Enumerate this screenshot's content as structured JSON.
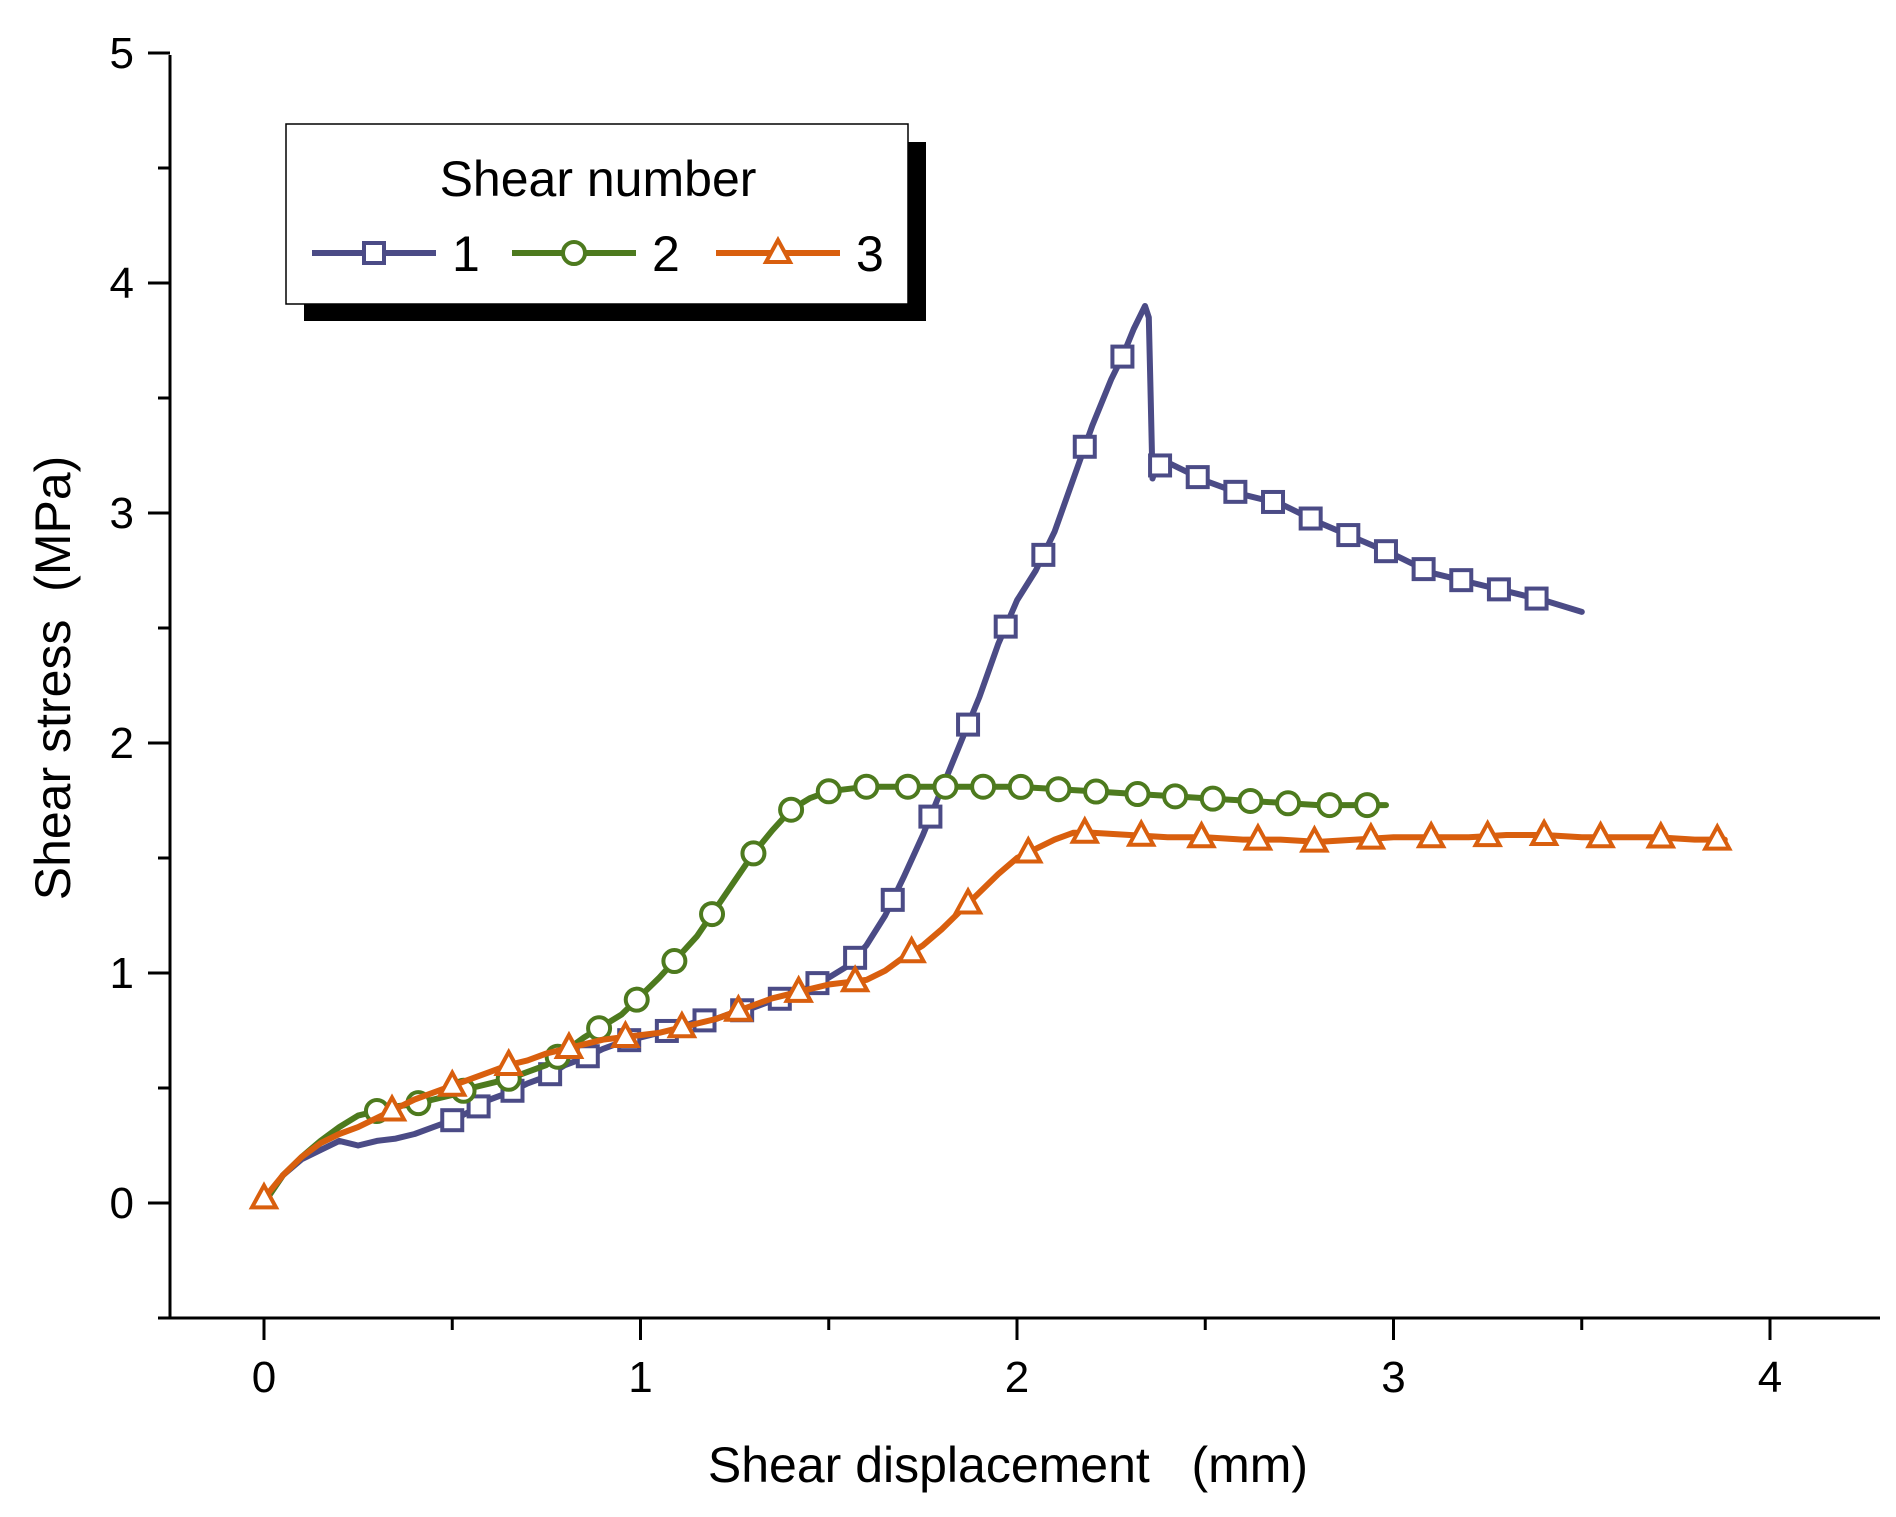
{
  "chart_data": {
    "type": "line",
    "title": "",
    "xlabel": "Shear displacement   (mm)",
    "ylabel": "Shear stress  (MPa)",
    "xlim": [
      -0.25,
      4.3
    ],
    "ylim": [
      -0.5,
      5
    ],
    "x_ticks": [
      0,
      1,
      2,
      3,
      4
    ],
    "x_tick_labels": [
      "0",
      "1",
      "2",
      "3",
      "4"
    ],
    "y_ticks": [
      0,
      1,
      2,
      3,
      4,
      5
    ],
    "y_tick_labels": [
      "0",
      "1",
      "2",
      "3",
      "4",
      "5"
    ],
    "grid": false,
    "legend": {
      "title": "Shear number",
      "position": "top-left"
    },
    "series": [
      {
        "name": "1",
        "color": "#4b4b86",
        "marker": "square",
        "points": [
          [
            0,
            0
          ],
          [
            0.05,
            0.12
          ],
          [
            0.1,
            0.19
          ],
          [
            0.15,
            0.23
          ],
          [
            0.2,
            0.27
          ],
          [
            0.25,
            0.25
          ],
          [
            0.3,
            0.27
          ],
          [
            0.35,
            0.28
          ],
          [
            0.4,
            0.3
          ],
          [
            0.45,
            0.33
          ],
          [
            0.5,
            0.36
          ],
          [
            0.55,
            0.4
          ],
          [
            0.6,
            0.45
          ],
          [
            0.65,
            0.48
          ],
          [
            0.7,
            0.52
          ],
          [
            0.75,
            0.55
          ],
          [
            0.8,
            0.6
          ],
          [
            0.85,
            0.63
          ],
          [
            0.9,
            0.67
          ],
          [
            0.95,
            0.7
          ],
          [
            1.0,
            0.72
          ],
          [
            1.05,
            0.74
          ],
          [
            1.1,
            0.76
          ],
          [
            1.15,
            0.79
          ],
          [
            1.2,
            0.8
          ],
          [
            1.25,
            0.83
          ],
          [
            1.3,
            0.85
          ],
          [
            1.35,
            0.88
          ],
          [
            1.4,
            0.9
          ],
          [
            1.45,
            0.94
          ],
          [
            1.5,
            0.98
          ],
          [
            1.55,
            1.03
          ],
          [
            1.6,
            1.12
          ],
          [
            1.65,
            1.25
          ],
          [
            1.7,
            1.42
          ],
          [
            1.75,
            1.6
          ],
          [
            1.8,
            1.8
          ],
          [
            1.85,
            2.0
          ],
          [
            1.9,
            2.2
          ],
          [
            1.95,
            2.43
          ],
          [
            2.0,
            2.62
          ],
          [
            2.05,
            2.75
          ],
          [
            2.1,
            2.92
          ],
          [
            2.15,
            3.15
          ],
          [
            2.2,
            3.38
          ],
          [
            2.25,
            3.58
          ],
          [
            2.28,
            3.68
          ],
          [
            2.31,
            3.8
          ],
          [
            2.34,
            3.9
          ],
          [
            2.35,
            3.85
          ],
          [
            2.355,
            3.5
          ],
          [
            2.36,
            3.15
          ],
          [
            2.37,
            3.2
          ],
          [
            2.4,
            3.22
          ],
          [
            2.5,
            3.14
          ],
          [
            2.6,
            3.08
          ],
          [
            2.7,
            3.04
          ],
          [
            2.8,
            2.96
          ],
          [
            2.9,
            2.89
          ],
          [
            3.0,
            2.82
          ],
          [
            3.1,
            2.74
          ],
          [
            3.2,
            2.7
          ],
          [
            3.3,
            2.66
          ],
          [
            3.4,
            2.62
          ],
          [
            3.5,
            2.57
          ]
        ],
        "markers_x": [
          0.5,
          0.57,
          0.66,
          0.76,
          0.86,
          0.97,
          1.07,
          1.17,
          1.27,
          1.37,
          1.47,
          1.57,
          1.67,
          1.77,
          1.87,
          1.97,
          2.07,
          2.18,
          2.28,
          2.38,
          2.48,
          2.58,
          2.68,
          2.78,
          2.88,
          2.98,
          3.08,
          3.18,
          3.28,
          3.38
        ]
      },
      {
        "name": "2",
        "color": "#4d7a1e",
        "marker": "circle",
        "points": [
          [
            0,
            0
          ],
          [
            0.05,
            0.12
          ],
          [
            0.1,
            0.2
          ],
          [
            0.15,
            0.27
          ],
          [
            0.2,
            0.33
          ],
          [
            0.25,
            0.38
          ],
          [
            0.3,
            0.4
          ],
          [
            0.35,
            0.42
          ],
          [
            0.4,
            0.43
          ],
          [
            0.45,
            0.45
          ],
          [
            0.5,
            0.47
          ],
          [
            0.55,
            0.5
          ],
          [
            0.6,
            0.52
          ],
          [
            0.65,
            0.54
          ],
          [
            0.7,
            0.57
          ],
          [
            0.75,
            0.6
          ],
          [
            0.8,
            0.66
          ],
          [
            0.85,
            0.72
          ],
          [
            0.9,
            0.77
          ],
          [
            0.95,
            0.82
          ],
          [
            1.0,
            0.9
          ],
          [
            1.05,
            0.98
          ],
          [
            1.1,
            1.07
          ],
          [
            1.15,
            1.16
          ],
          [
            1.2,
            1.28
          ],
          [
            1.25,
            1.4
          ],
          [
            1.3,
            1.52
          ],
          [
            1.35,
            1.62
          ],
          [
            1.4,
            1.71
          ],
          [
            1.45,
            1.76
          ],
          [
            1.5,
            1.79
          ],
          [
            1.6,
            1.81
          ],
          [
            1.7,
            1.81
          ],
          [
            1.8,
            1.81
          ],
          [
            1.9,
            1.81
          ],
          [
            2.0,
            1.81
          ],
          [
            2.1,
            1.8
          ],
          [
            2.2,
            1.79
          ],
          [
            2.3,
            1.78
          ],
          [
            2.4,
            1.77
          ],
          [
            2.5,
            1.76
          ],
          [
            2.6,
            1.75
          ],
          [
            2.7,
            1.74
          ],
          [
            2.8,
            1.73
          ],
          [
            2.9,
            1.73
          ],
          [
            2.98,
            1.73
          ]
        ],
        "markers_x": [
          0.3,
          0.41,
          0.53,
          0.65,
          0.78,
          0.89,
          0.99,
          1.09,
          1.19,
          1.3,
          1.4,
          1.5,
          1.6,
          1.71,
          1.81,
          1.91,
          2.01,
          2.11,
          2.21,
          2.32,
          2.42,
          2.52,
          2.62,
          2.72,
          2.83,
          2.93
        ]
      },
      {
        "name": "3",
        "color": "#d95f0e",
        "marker": "triangle",
        "points": [
          [
            0,
            0.02
          ],
          [
            0.05,
            0.12
          ],
          [
            0.1,
            0.2
          ],
          [
            0.15,
            0.26
          ],
          [
            0.2,
            0.3
          ],
          [
            0.25,
            0.33
          ],
          [
            0.3,
            0.37
          ],
          [
            0.35,
            0.41
          ],
          [
            0.4,
            0.45
          ],
          [
            0.45,
            0.48
          ],
          [
            0.5,
            0.51
          ],
          [
            0.55,
            0.54
          ],
          [
            0.6,
            0.57
          ],
          [
            0.65,
            0.6
          ],
          [
            0.7,
            0.62
          ],
          [
            0.75,
            0.65
          ],
          [
            0.8,
            0.67
          ],
          [
            0.85,
            0.69
          ],
          [
            0.9,
            0.71
          ],
          [
            0.95,
            0.72
          ],
          [
            1.0,
            0.73
          ],
          [
            1.05,
            0.74
          ],
          [
            1.1,
            0.76
          ],
          [
            1.15,
            0.78
          ],
          [
            1.2,
            0.8
          ],
          [
            1.25,
            0.83
          ],
          [
            1.3,
            0.86
          ],
          [
            1.35,
            0.89
          ],
          [
            1.4,
            0.91
          ],
          [
            1.45,
            0.93
          ],
          [
            1.5,
            0.95
          ],
          [
            1.55,
            0.96
          ],
          [
            1.6,
            0.97
          ],
          [
            1.65,
            1.01
          ],
          [
            1.7,
            1.07
          ],
          [
            1.75,
            1.12
          ],
          [
            1.8,
            1.19
          ],
          [
            1.85,
            1.27
          ],
          [
            1.9,
            1.35
          ],
          [
            1.95,
            1.43
          ],
          [
            2.0,
            1.5
          ],
          [
            2.05,
            1.54
          ],
          [
            2.1,
            1.58
          ],
          [
            2.15,
            1.61
          ],
          [
            2.2,
            1.61
          ],
          [
            2.3,
            1.6
          ],
          [
            2.4,
            1.59
          ],
          [
            2.5,
            1.59
          ],
          [
            2.6,
            1.58
          ],
          [
            2.7,
            1.58
          ],
          [
            2.8,
            1.57
          ],
          [
            2.9,
            1.58
          ],
          [
            3.0,
            1.59
          ],
          [
            3.1,
            1.59
          ],
          [
            3.2,
            1.59
          ],
          [
            3.3,
            1.6
          ],
          [
            3.4,
            1.6
          ],
          [
            3.5,
            1.59
          ],
          [
            3.6,
            1.59
          ],
          [
            3.7,
            1.59
          ],
          [
            3.8,
            1.58
          ],
          [
            3.88,
            1.58
          ]
        ],
        "markers_x": [
          0,
          0.34,
          0.5,
          0.65,
          0.81,
          0.96,
          1.11,
          1.26,
          1.42,
          1.57,
          1.72,
          1.87,
          2.03,
          2.18,
          2.33,
          2.49,
          2.64,
          2.79,
          2.94,
          3.1,
          3.25,
          3.4,
          3.55,
          3.71,
          3.86
        ]
      }
    ]
  }
}
